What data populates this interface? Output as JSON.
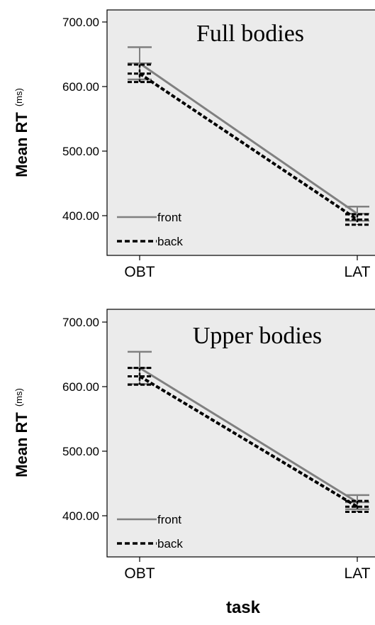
{
  "chart_data": [
    {
      "type": "line",
      "title": "Full bodies",
      "ylabel": "Mean RT",
      "ylabel_unit": "(ms)",
      "xlabel": "",
      "categories": [
        "OBT",
        "LAT"
      ],
      "ylim": [
        350,
        710
      ],
      "yticks": [
        "700.00",
        "600.00",
        "500.00",
        "400.00"
      ],
      "ytick_values": [
        700,
        600,
        500,
        400
      ],
      "legend_position": "bottom-left",
      "series": [
        {
          "name": "front",
          "style": "solid",
          "color": "#808080",
          "values": [
            636,
            403
          ],
          "err_low": [
            611,
            392
          ],
          "err_high": [
            661,
            414
          ]
        },
        {
          "name": "back",
          "style": "dashed",
          "color": "#000000",
          "values": [
            620,
            394
          ],
          "err_low": [
            607,
            386
          ],
          "err_high": [
            634,
            402
          ]
        }
      ]
    },
    {
      "type": "line",
      "title": "Upper bodies",
      "ylabel": "Mean RT",
      "ylabel_unit": "(ms)",
      "xlabel": "task",
      "categories": [
        "OBT",
        "LAT"
      ],
      "ylim": [
        350,
        710
      ],
      "yticks": [
        "700.00",
        "600.00",
        "500.00",
        "400.00"
      ],
      "ytick_values": [
        700,
        600,
        500,
        400
      ],
      "legend_position": "bottom-left",
      "series": [
        {
          "name": "front",
          "style": "solid",
          "color": "#808080",
          "values": [
            629,
            421
          ],
          "err_low": [
            604,
            410
          ],
          "err_high": [
            654,
            432
          ]
        },
        {
          "name": "back",
          "style": "dashed",
          "color": "#000000",
          "values": [
            616,
            414
          ],
          "err_low": [
            603,
            406
          ],
          "err_high": [
            629,
            423
          ]
        }
      ]
    }
  ]
}
